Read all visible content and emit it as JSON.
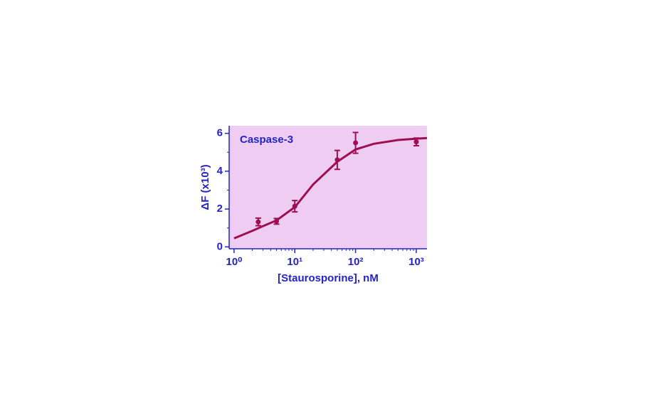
{
  "chart_data": {
    "type": "scatter",
    "annotation": "Caspase-3",
    "x_label": "[Staurosporine], nM",
    "y_label": "ΔF (x10³)",
    "log_x": true,
    "background": "#efcdf3",
    "text_color": "#2323c8",
    "xlim": [
      0.83,
      1500
    ],
    "ylim": [
      -0.1,
      6.4
    ],
    "xticks": [
      {
        "value": 1,
        "label": "10⁰"
      },
      {
        "value": 10,
        "label": "10¹"
      },
      {
        "value": 100,
        "label": "10²"
      },
      {
        "value": 1000,
        "label": "10³"
      }
    ],
    "yticks": [
      0,
      2,
      4,
      6
    ],
    "series": [
      {
        "type": "scatter",
        "color": "#9e0f52",
        "x": [
          2.5,
          5,
          10,
          50,
          100,
          1000
        ],
        "values": [
          1.32,
          1.35,
          2.15,
          4.6,
          5.5,
          5.55
        ],
        "errors": [
          0.2,
          0.15,
          0.3,
          0.5,
          0.55,
          0.2
        ]
      },
      {
        "type": "line",
        "color": "#9e0f52",
        "x": [
          1,
          2,
          3,
          5,
          10,
          20,
          50,
          100,
          200,
          500,
          1000,
          1500
        ],
        "values": [
          0.45,
          0.85,
          1.1,
          1.4,
          2.1,
          3.3,
          4.5,
          5.15,
          5.45,
          5.65,
          5.72,
          5.75
        ]
      }
    ]
  }
}
